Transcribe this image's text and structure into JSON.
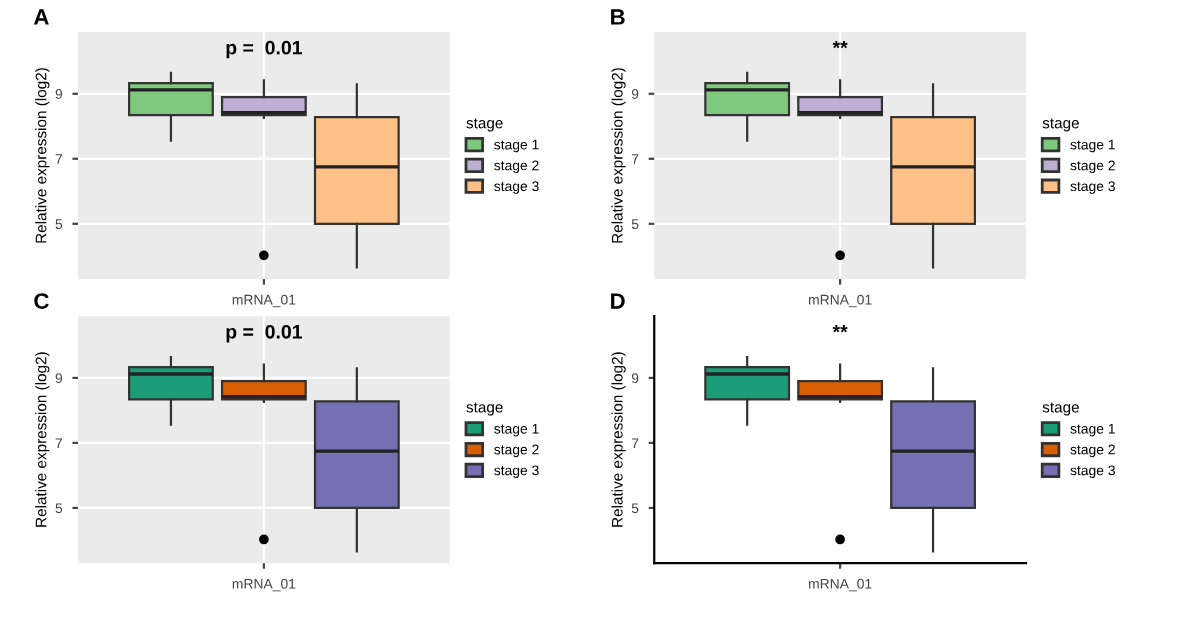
{
  "chart_data": [
    {
      "type": "box",
      "title": "A",
      "ylabel": "Relative expression (log2)",
      "categories": [
        "mRNA_01"
      ],
      "ylim": [
        3.3,
        10.9
      ],
      "yticks": [
        5,
        7,
        9
      ],
      "grid": true,
      "legend": "right",
      "legend_title": "stage",
      "annotations": [
        "p =  0.01"
      ],
      "series": [
        {
          "name": "stage 1",
          "color": "#7fc97f",
          "boxes": [
            {
              "low": 7.56,
              "q1": 8.34,
              "median": 9.12,
              "q3": 9.33,
              "high": 9.64
            }
          ]
        },
        {
          "name": "stage 2",
          "color": "#beaed4",
          "boxes": [
            {
              "low": 8.26,
              "q1": 8.34,
              "median": 8.42,
              "q3": 8.9,
              "high": 9.41,
              "outliers": [
                4.03
              ]
            }
          ]
        },
        {
          "name": "stage 3",
          "color": "#fdc086",
          "boxes": [
            {
              "low": 3.66,
              "q1": 5.0,
              "median": 6.75,
              "q3": 8.28,
              "high": 9.29
            }
          ]
        }
      ]
    },
    {
      "type": "box",
      "title": "B",
      "ylabel": "Relative expression (log2)",
      "categories": [
        "mRNA_01"
      ],
      "ylim": [
        3.3,
        10.9
      ],
      "yticks": [
        5,
        7,
        9
      ],
      "grid": true,
      "legend": "right",
      "legend_title": "stage",
      "annotations": [
        "**"
      ],
      "series": [
        {
          "name": "stage 1",
          "color": "#7fc97f",
          "boxes": [
            {
              "low": 7.56,
              "q1": 8.34,
              "median": 9.12,
              "q3": 9.33,
              "high": 9.64
            }
          ]
        },
        {
          "name": "stage 2",
          "color": "#beaed4",
          "boxes": [
            {
              "low": 8.26,
              "q1": 8.34,
              "median": 8.42,
              "q3": 8.9,
              "high": 9.41,
              "outliers": [
                4.03
              ]
            }
          ]
        },
        {
          "name": "stage 3",
          "color": "#fdc086",
          "boxes": [
            {
              "low": 3.66,
              "q1": 5.0,
              "median": 6.75,
              "q3": 8.28,
              "high": 9.29
            }
          ]
        }
      ]
    },
    {
      "type": "box",
      "title": "C",
      "ylabel": "Relative expression (log2)",
      "categories": [
        "mRNA_01"
      ],
      "ylim": [
        3.3,
        10.9
      ],
      "yticks": [
        5,
        7,
        9
      ],
      "grid": true,
      "legend": "right",
      "legend_title": "stage",
      "annotations": [
        "p =  0.01"
      ],
      "series": [
        {
          "name": "stage 1",
          "color": "#1b9e77",
          "boxes": [
            {
              "low": 7.56,
              "q1": 8.34,
              "median": 9.12,
              "q3": 9.33,
              "high": 9.64
            }
          ]
        },
        {
          "name": "stage 2",
          "color": "#d95f02",
          "boxes": [
            {
              "low": 8.26,
              "q1": 8.34,
              "median": 8.42,
              "q3": 8.9,
              "high": 9.41,
              "outliers": [
                4.03
              ]
            }
          ]
        },
        {
          "name": "stage 3",
          "color": "#7570b3",
          "boxes": [
            {
              "low": 3.66,
              "q1": 5.0,
              "median": 6.75,
              "q3": 8.28,
              "high": 9.29
            }
          ]
        }
      ]
    },
    {
      "type": "box",
      "title": "D",
      "ylabel": "Relative expression (log2)",
      "categories": [
        "mRNA_01"
      ],
      "ylim": [
        3.3,
        10.9
      ],
      "yticks": [
        5,
        7,
        9
      ],
      "grid": false,
      "legend": "right",
      "legend_title": "stage",
      "annotations": [
        "**"
      ],
      "series": [
        {
          "name": "stage 1",
          "color": "#1b9e77",
          "boxes": [
            {
              "low": 7.56,
              "q1": 8.34,
              "median": 9.12,
              "q3": 9.33,
              "high": 9.64
            }
          ]
        },
        {
          "name": "stage 2",
          "color": "#d95f02",
          "boxes": [
            {
              "low": 8.26,
              "q1": 8.34,
              "median": 8.42,
              "q3": 8.9,
              "high": 9.41,
              "outliers": [
                4.03
              ]
            }
          ]
        },
        {
          "name": "stage 3",
          "color": "#7570b3",
          "boxes": [
            {
              "low": 3.66,
              "q1": 5.0,
              "median": 6.75,
              "q3": 8.28,
              "high": 9.29
            }
          ]
        }
      ]
    }
  ]
}
